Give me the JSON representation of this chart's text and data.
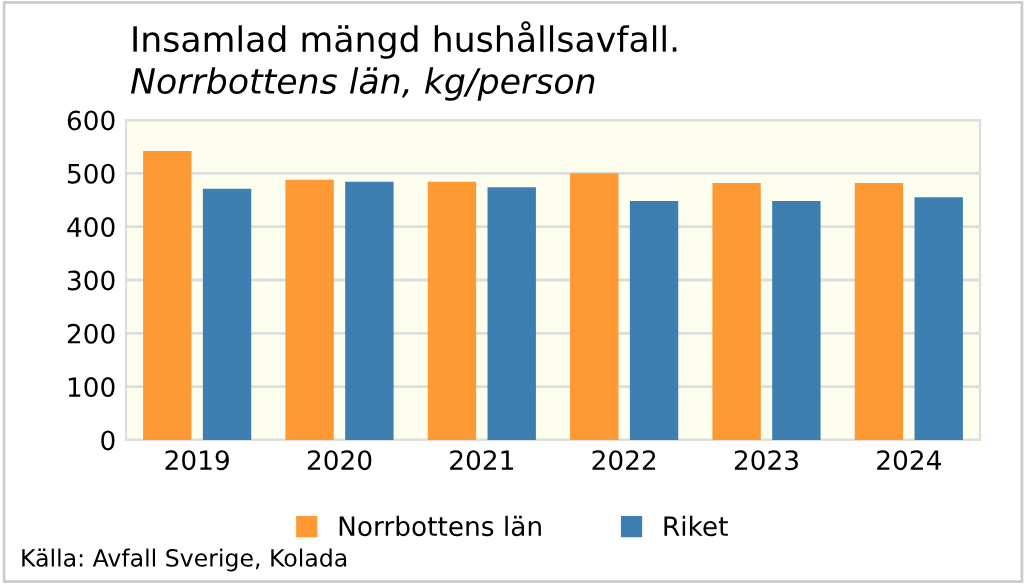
{
  "chart_data": {
    "type": "bar",
    "title": "Insamlad mängd hushållsavfall.",
    "subtitle": "Norrbottens län, kg/person",
    "categories": [
      "2019",
      "2020",
      "2021",
      "2022",
      "2023",
      "2024"
    ],
    "series": [
      {
        "name": "Norrbottens län",
        "color": "#ff9933",
        "values": [
          542,
          488,
          484,
          500,
          482,
          482
        ]
      },
      {
        "name": "Riket",
        "color": "#3c7fb0",
        "values": [
          471,
          484,
          474,
          448,
          448,
          455
        ]
      }
    ],
    "ylim": [
      0,
      600
    ],
    "yticks": [
      0,
      100,
      200,
      300,
      400,
      500,
      600
    ],
    "grid": "y",
    "legend": "bottom",
    "annotations": [
      "Källa: Avfall Sverige, Kolada"
    ]
  }
}
